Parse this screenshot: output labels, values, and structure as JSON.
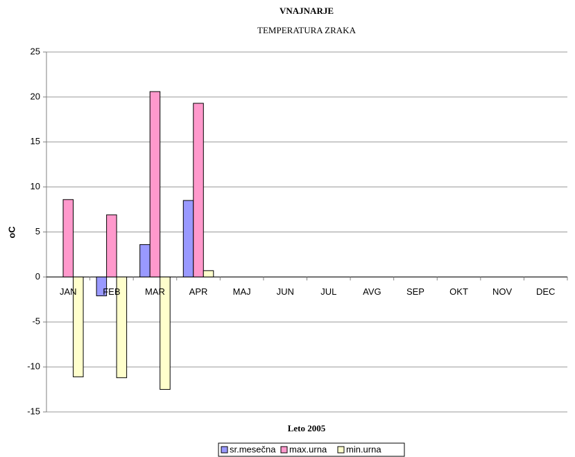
{
  "chart_data": {
    "type": "bar",
    "title": "VNAJNARJE",
    "subtitle": "TEMPERATURA ZRAKA",
    "x_label": "Leto 2005",
    "y_label": "oC",
    "categories": [
      "JAN",
      "FEB",
      "MAR",
      "APR",
      "MAJ",
      "JUN",
      "JUL",
      "AVG",
      "SEP",
      "OKT",
      "NOV",
      "DEC"
    ],
    "series": [
      {
        "name": "sr.mesečna",
        "color": "#9999ff",
        "values": [
          null,
          -2.1,
          3.6,
          8.5,
          null,
          null,
          null,
          null,
          null,
          null,
          null,
          null
        ]
      },
      {
        "name": "max.urna",
        "color": "#ff99cc",
        "values": [
          8.6,
          6.9,
          20.6,
          19.3,
          null,
          null,
          null,
          null,
          null,
          null,
          null,
          null
        ]
      },
      {
        "name": "min.urna",
        "color": "#ffffcc",
        "values": [
          -11.1,
          -11.2,
          -12.5,
          0.7,
          null,
          null,
          null,
          null,
          null,
          null,
          null,
          null
        ]
      }
    ],
    "ylim": [
      -15,
      25
    ],
    "yticks": [
      -15,
      -10,
      -5,
      0,
      5,
      10,
      15,
      20,
      25
    ],
    "grid": true,
    "legend": "bottom"
  }
}
